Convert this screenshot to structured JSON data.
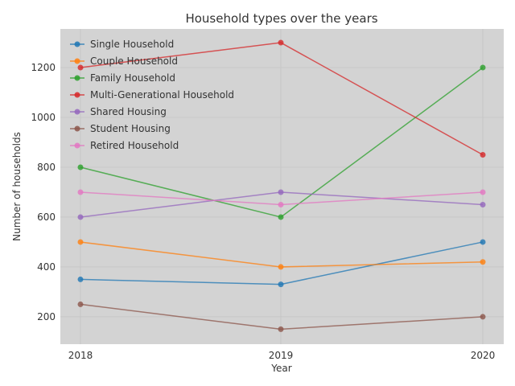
{
  "chart_data": {
    "type": "line",
    "title": "Household types over the years",
    "xlabel": "Year",
    "ylabel": "Number of households",
    "x": [
      "2018",
      "2019",
      "2020"
    ],
    "ylim": [
      90,
      1355
    ],
    "yticks": [
      200,
      400,
      600,
      800,
      1000,
      1200
    ],
    "ytick_labels": [
      "200",
      "400",
      "600",
      "800",
      "1000",
      "1200"
    ],
    "grid": true,
    "legend_position": "top-left",
    "background": "#d3d3d3",
    "series": [
      {
        "name": "Single Household",
        "color": "#1f77b4",
        "values": [
          350,
          330,
          500
        ]
      },
      {
        "name": "Couple Household",
        "color": "#ff7f0e",
        "values": [
          500,
          400,
          420
        ]
      },
      {
        "name": "Family Household",
        "color": "#2ca02c",
        "values": [
          800,
          600,
          1200
        ]
      },
      {
        "name": "Multi-Generational Household",
        "color": "#d62728",
        "values": [
          1200,
          1300,
          850
        ]
      },
      {
        "name": "Shared Housing",
        "color": "#9467bd",
        "values": [
          600,
          700,
          650
        ]
      },
      {
        "name": "Student Housing",
        "color": "#8c564b",
        "values": [
          250,
          150,
          200
        ]
      },
      {
        "name": "Retired Household",
        "color": "#e377c2",
        "values": [
          700,
          650,
          700
        ]
      }
    ]
  }
}
